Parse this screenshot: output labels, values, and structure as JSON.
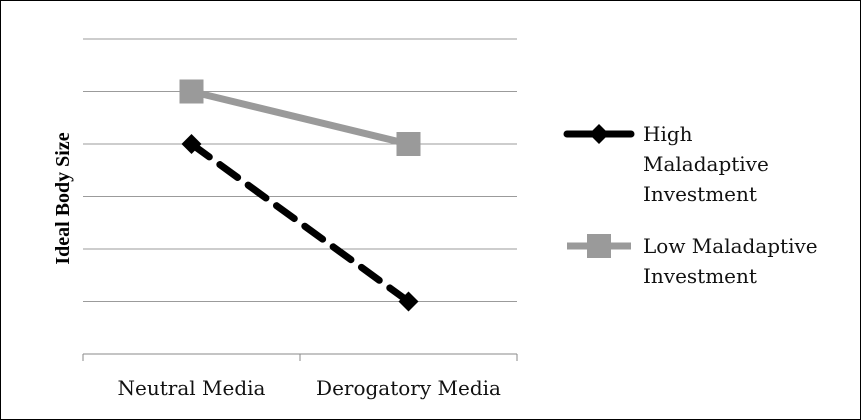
{
  "chart_data": {
    "type": "line",
    "title": "",
    "xlabel": "",
    "ylabel": "Ideal Body Size",
    "categories": [
      "Neutral Media",
      "Derogatory Media"
    ],
    "ylim": [
      0,
      6
    ],
    "y_ticks_labeled": false,
    "grid": true,
    "legend_position": "right",
    "series": [
      {
        "name": "High Maladaptive Investment",
        "values": [
          4,
          1
        ],
        "color": "#000000",
        "line_style": "dashed",
        "marker": "diamond"
      },
      {
        "name": "Low Maladaptive Investment",
        "values": [
          5,
          4
        ],
        "color": "#9a9a9a",
        "line_style": "solid",
        "marker": "square"
      }
    ],
    "legend": [
      {
        "lines": [
          "High",
          "Maladaptive",
          "Investment"
        ]
      },
      {
        "lines": [
          "Low Maladaptive",
          "Investment"
        ]
      }
    ]
  }
}
